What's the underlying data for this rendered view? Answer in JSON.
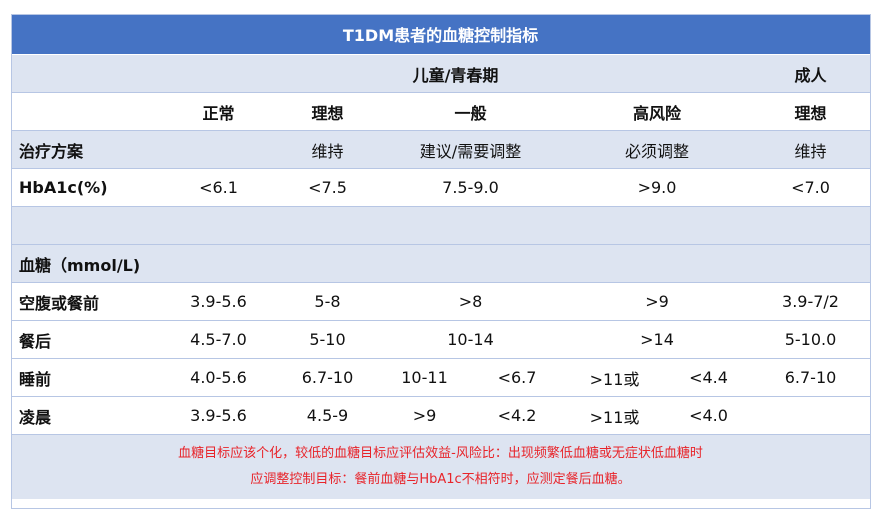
{
  "table": {
    "title": "T1DM患者的血糖控制指标",
    "group_children": "儿童/青春期",
    "group_adult": "成人",
    "levels": {
      "normal": "正常",
      "ideal": "理想",
      "general": "一般",
      "high_risk": "高风险",
      "adult_ideal": "理想"
    },
    "treatment": {
      "label": "治疗方案",
      "normal": "",
      "ideal": "维持",
      "general": "建议/需要调整",
      "high_risk": "必须调整",
      "adult": "维持"
    },
    "hba1c": {
      "label": "HbA1c(%)",
      "normal": "<6.1",
      "ideal": "<7.5",
      "general": "7.5-9.0",
      "high_risk": ">9.0",
      "adult": "<7.0"
    },
    "glucose_header": "血糖（mmol/L)",
    "fasting": {
      "label": "空腹或餐前",
      "normal": "3.9-5.6",
      "ideal": "5-8",
      "general": ">8",
      "high_risk": ">9",
      "adult": "3.9-7/2"
    },
    "postprandial": {
      "label": "餐后",
      "normal": "4.5-7.0",
      "ideal": "5-10",
      "general": "10-14",
      "high_risk": ">14",
      "adult": "5-10.0"
    },
    "bedtime": {
      "label": "睡前",
      "normal": "4.0-5.6",
      "ideal": "6.7-10",
      "general_a": "10-11",
      "general_b": "<6.7",
      "high_risk_a": ">11或",
      "high_risk_b": "<4.4",
      "adult": "6.7-10"
    },
    "dawn": {
      "label": "凌晨",
      "normal": "3.9-5.6",
      "ideal": "4.5-9",
      "general_a": ">9",
      "general_b": "<4.2",
      "high_risk_a": ">11或",
      "high_risk_b": "<4.0",
      "adult": ""
    },
    "note_line1": "血糖目标应该个化，较低的血糖目标应评估效益-风险比：出现频繁低血糖或无症状低血糖时",
    "note_line2": "应调整控制目标：餐前血糖与HbA1c不相符时，应测定餐后血糖。"
  }
}
